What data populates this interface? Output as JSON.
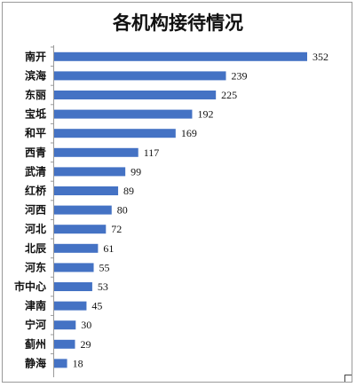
{
  "chart_data": {
    "type": "bar",
    "orientation": "horizontal",
    "title": "各机构接待情况",
    "categories": [
      "南开",
      "滨海",
      "东丽",
      "宝坻",
      "和平",
      "西青",
      "武清",
      "红桥",
      "河西",
      "河北",
      "北辰",
      "河东",
      "市中心",
      "津南",
      "宁河",
      "蓟州",
      "静海"
    ],
    "values": [
      352,
      239,
      225,
      192,
      169,
      117,
      99,
      89,
      80,
      72,
      61,
      55,
      53,
      45,
      30,
      29,
      18
    ],
    "bar_color": "#4472C4",
    "xlabel": "",
    "ylabel": "",
    "xlim": [
      0,
      400
    ],
    "grid": false,
    "legend": "none"
  }
}
